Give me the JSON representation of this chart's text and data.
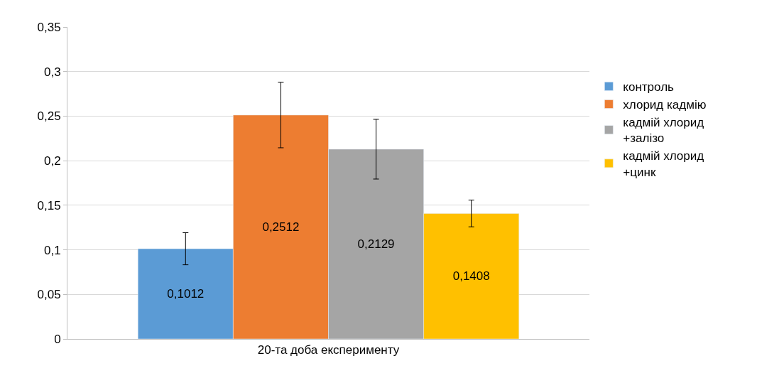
{
  "chart_data": {
    "type": "bar",
    "categories": [
      "20-та доба експерименту"
    ],
    "series": [
      {
        "name": "контроль",
        "color": "#5b9bd5",
        "values": [
          0.1012
        ],
        "value_labels": [
          "0,1012"
        ],
        "errors": [
          0.018
        ]
      },
      {
        "name": "хлорид кадмію",
        "color": "#ed7d31",
        "values": [
          0.2512
        ],
        "value_labels": [
          "0,2512"
        ],
        "errors": [
          0.0367
        ]
      },
      {
        "name": "кадмій хлорид +залізо",
        "color": "#a5a5a5",
        "values": [
          0.2129
        ],
        "value_labels": [
          "0,2129"
        ],
        "errors": [
          0.0335
        ]
      },
      {
        "name": "кадмій хлорид +цинк",
        "color": "#ffc000",
        "values": [
          0.1408
        ],
        "value_labels": [
          "0,1408"
        ],
        "errors": [
          0.015
        ]
      }
    ],
    "ylim": [
      0,
      0.35
    ],
    "yticks": [
      0,
      {
        "value": 0.05,
        "label": "0,05"
      },
      {
        "value": 0.1,
        "label": "0,1"
      },
      {
        "value": 0.15,
        "label": "0,15"
      },
      {
        "value": 0.2,
        "label": "0,2"
      },
      {
        "value": 0.25,
        "label": "0,25"
      },
      {
        "value": 0.3,
        "label": "0,3"
      },
      {
        "value": 0.35,
        "label": "0,35"
      }
    ],
    "grid": "y",
    "legend": "right"
  }
}
